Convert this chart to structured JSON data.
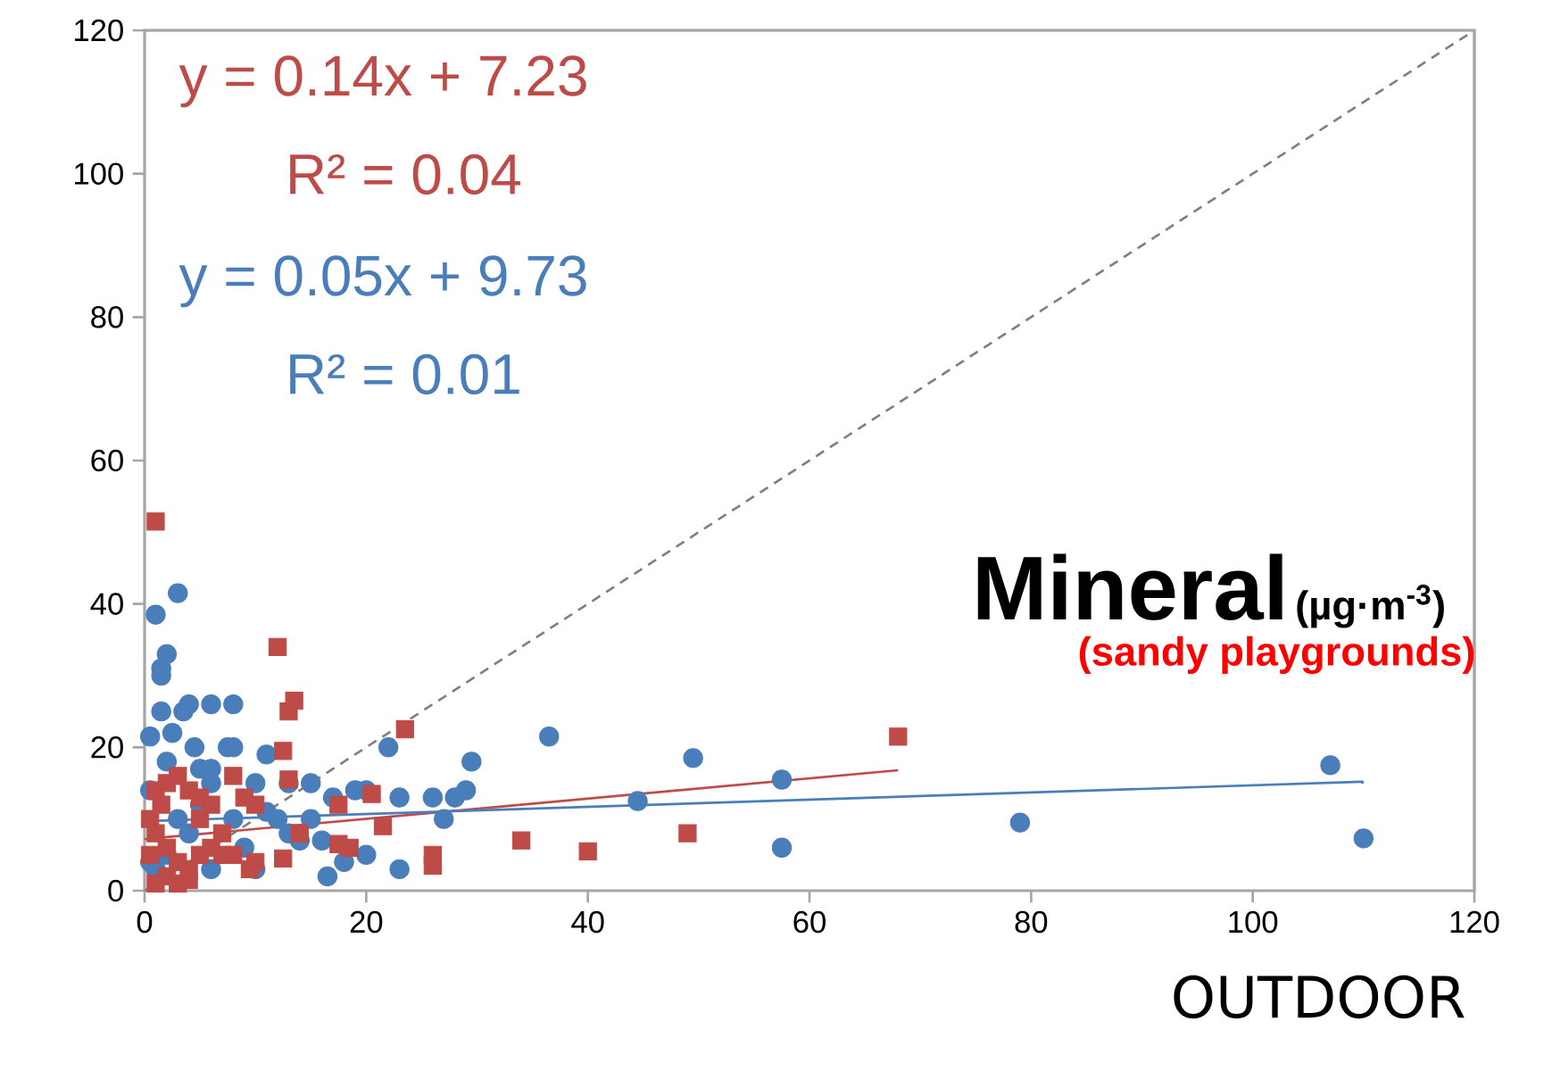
{
  "chart_data": {
    "type": "scatter",
    "title": "Mineral",
    "subtitle": "(µg·m$^{-3}$)",
    "xlabel": "OUTDOOR",
    "annotations": [
      "y = 0.14x + 7.23",
      "R² = 0.04",
      "y = 0.05x + 9.73",
      "R² = 0.01",
      "(sandy playgrounds)"
    ],
    "xlim": [
      0,
      120
    ],
    "ylim": [
      0,
      120
    ],
    "xticks": [
      0,
      20,
      40,
      60,
      80,
      100,
      120
    ],
    "yticks": [
      0,
      20,
      40,
      60,
      80,
      100,
      120
    ],
    "grid": false,
    "series": [
      {
        "color": "#4a7ebb",
        "marker": "circle",
        "x": [
          0.5,
          1,
          1.5,
          1.5,
          2,
          3,
          1.5,
          0.5,
          2.5,
          3.5,
          4,
          4.5,
          6,
          8,
          7.5,
          8,
          10,
          11,
          13,
          15,
          17,
          19,
          20,
          22,
          23,
          26,
          27,
          28,
          29,
          29.5,
          36.5,
          44.5,
          49.5,
          57.5,
          57.5,
          79,
          107,
          110,
          16.5,
          18,
          20,
          23,
          10,
          6,
          5,
          6,
          3,
          4,
          2,
          1,
          12,
          13,
          8,
          9,
          14,
          15,
          16,
          11,
          2,
          5,
          6,
          0.5
        ],
        "values": [
          14,
          38.5,
          31,
          30,
          33,
          41.5,
          25,
          21.5,
          22,
          25,
          26,
          20,
          26,
          26,
          20,
          20,
          15,
          19,
          15,
          15,
          13,
          14,
          14,
          20,
          13,
          13,
          10,
          13,
          14,
          18,
          21.5,
          12.5,
          18.5,
          15.5,
          6,
          9.5,
          17.5,
          7.3,
          2,
          4,
          5,
          3,
          3,
          3,
          12,
          15,
          10,
          8,
          5,
          3,
          10,
          8,
          10,
          6,
          7,
          10,
          7,
          11,
          18,
          17,
          17,
          4
        ]
      },
      {
        "color": "#be4b48",
        "marker": "square",
        "x": [
          1,
          12,
          13.5,
          13,
          23.5,
          68,
          12.5,
          8,
          17.5,
          13,
          20.5,
          21.5,
          14,
          17.5,
          18.5,
          26,
          26,
          34,
          40,
          49,
          10,
          12.5,
          9.5,
          1,
          2,
          3,
          4,
          5,
          0.5,
          1,
          2,
          3,
          4,
          5,
          2,
          3,
          1,
          6,
          7,
          8,
          4,
          5,
          6,
          1.5,
          10,
          9,
          7,
          0.5
        ],
        "values": [
          51.5,
          34,
          26.5,
          25,
          22.5,
          21.5,
          19.5,
          16,
          12,
          15.5,
          13.5,
          9,
          8,
          6.5,
          6,
          5,
          3.5,
          7,
          5.5,
          8,
          4,
          4.5,
          3,
          14,
          15,
          16,
          14,
          13,
          10,
          8,
          6,
          4,
          3,
          5,
          2,
          1,
          1,
          6,
          8,
          5,
          1.5,
          10,
          12,
          12,
          12,
          13,
          5,
          5
        ]
      },
      {
        "type": "line",
        "color": "#be4b48",
        "marker": "none",
        "line_style": "solid",
        "x": [
          0,
          68
        ],
        "values": [
          7.2,
          16.8
        ]
      },
      {
        "type": "line",
        "color": "#4a7ebb",
        "marker": "none",
        "line_style": "solid",
        "x": [
          0,
          110
        ],
        "values": [
          9.7,
          15.2
        ]
      },
      {
        "type": "line",
        "color": "#808080",
        "marker": "none",
        "line_style": "dashed",
        "x": [
          0,
          120
        ],
        "values": [
          0,
          120
        ]
      }
    ]
  }
}
